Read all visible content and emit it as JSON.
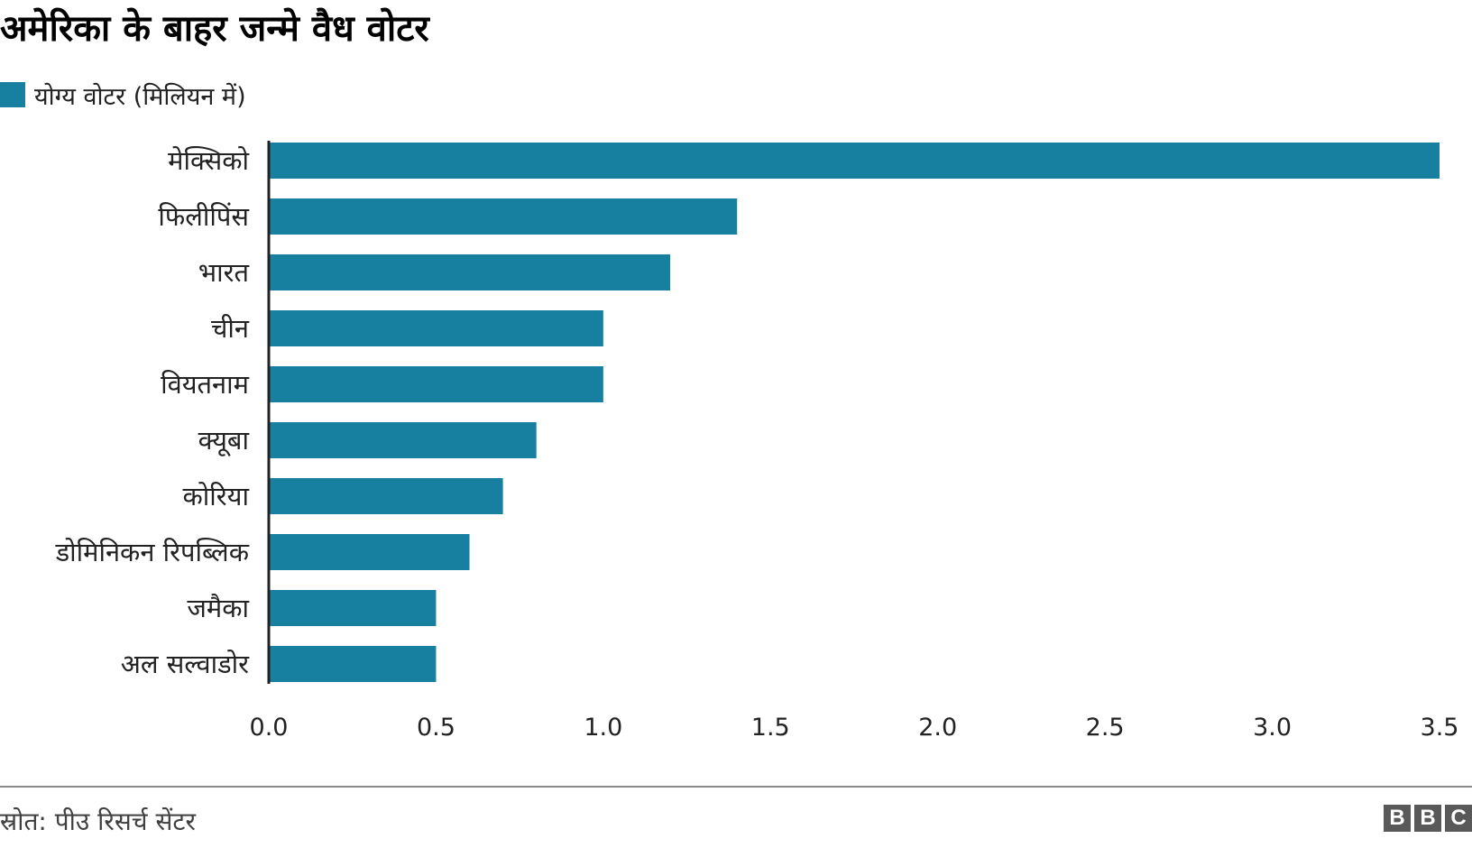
{
  "title": "अमेरिका के बाहर जन्मे वैध वोटर",
  "legend": {
    "label": "योग्य वोटर (मिलियन में)"
  },
  "colors": {
    "bar": "#1780a1",
    "axis": "#222222"
  },
  "chart_data": {
    "type": "bar",
    "orientation": "horizontal",
    "categories": [
      "मेक्सिको",
      "फिलीपिंस",
      "भारत",
      "चीन",
      "वियतनाम",
      "क्यूबा",
      "कोरिया",
      "डोमिनिकन रिपब्लिक",
      "जमैका",
      "अल सल्वाडोर"
    ],
    "series": [
      {
        "name": "योग्य वोटर (मिलियन में)",
        "values": [
          3.5,
          1.4,
          1.2,
          1.0,
          1.0,
          0.8,
          0.7,
          0.6,
          0.5,
          0.5
        ]
      }
    ],
    "xticks": [
      "0.0",
      "0.5",
      "1.0",
      "1.5",
      "2.0",
      "2.5",
      "3.0",
      "3.5"
    ],
    "xlim": [
      0,
      3.5
    ],
    "grid": false,
    "legend_position": "top-left"
  },
  "footer": {
    "source": "स्रोत: पीउ रिसर्च सेंटर",
    "logo": [
      "B",
      "B",
      "C"
    ]
  }
}
